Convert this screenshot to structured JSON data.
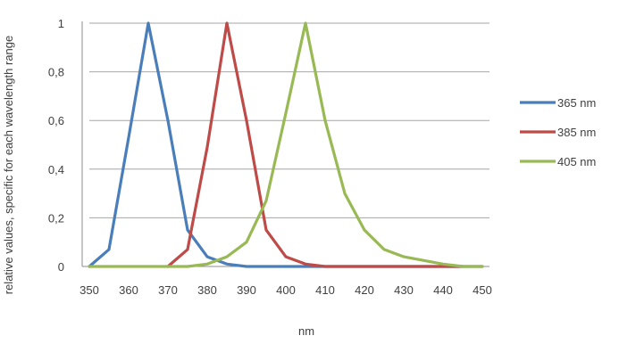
{
  "chart_data": {
    "type": "line",
    "title": "",
    "xlabel": "nm",
    "ylabel": "relative values, specific for each wavelength range",
    "x": [
      350,
      355,
      360,
      365,
      370,
      375,
      380,
      385,
      390,
      395,
      400,
      405,
      410,
      415,
      420,
      425,
      430,
      435,
      440,
      445,
      450
    ],
    "x_ticks": [
      "350",
      "360",
      "370",
      "380",
      "390",
      "400",
      "410",
      "420",
      "430",
      "440",
      "450"
    ],
    "y_ticks": [
      "0",
      "0,2",
      "0,4",
      "0,6",
      "0,8",
      "1"
    ],
    "xlim": [
      350,
      450
    ],
    "ylim": [
      0,
      1
    ],
    "grid": "horizontal",
    "legend_position": "right",
    "series": [
      {
        "name": "365 nm",
        "color": "#4a7ebb",
        "values": [
          0,
          0.07,
          0.53,
          1,
          0.6,
          0.15,
          0.04,
          0.01,
          0,
          0,
          0,
          0,
          0,
          0,
          0,
          0,
          0,
          0,
          0,
          0,
          0
        ]
      },
      {
        "name": "385 nm",
        "color": "#be4b48",
        "values": [
          null,
          null,
          null,
          null,
          0,
          0.07,
          0.49,
          1,
          0.6,
          0.15,
          0.04,
          0.01,
          0,
          0,
          0,
          0,
          0,
          0,
          0,
          0,
          null
        ]
      },
      {
        "name": "405 nm",
        "color": "#98b954",
        "values": [
          0,
          0,
          0,
          0,
          0,
          0,
          0.01,
          0.04,
          0.1,
          0.27,
          0.63,
          1,
          0.6,
          0.3,
          0.15,
          0.07,
          0.04,
          0.025,
          0.01,
          0,
          0
        ]
      }
    ]
  }
}
